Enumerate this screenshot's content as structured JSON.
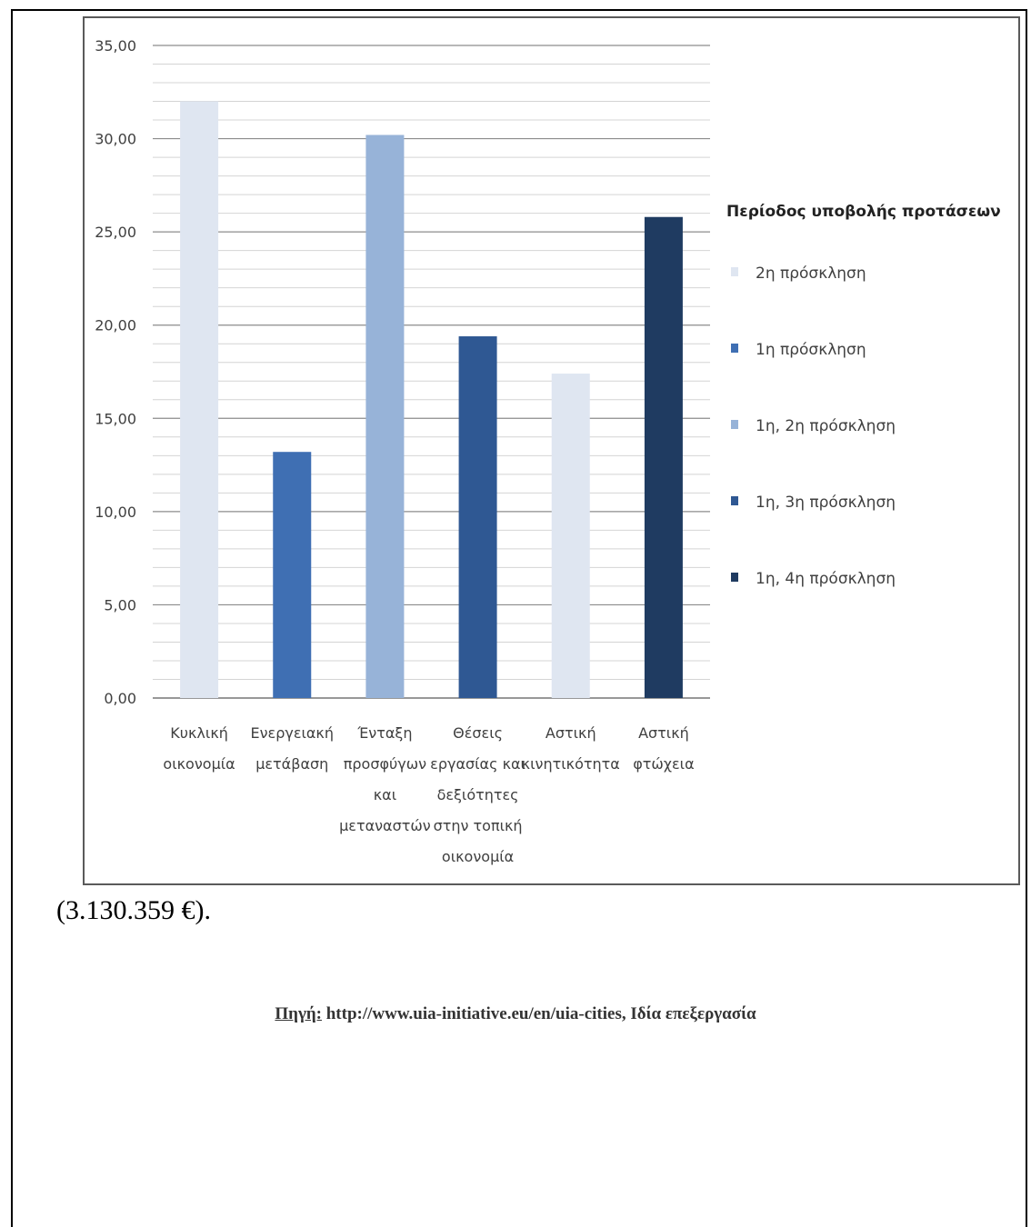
{
  "amount_text": "(3.130.359 €).",
  "source": {
    "label": "Πηγή:",
    "text": " http://www.uia-initiative.eu/en/uia-cities, Ιδία επεξεργασία"
  },
  "chart_data": {
    "type": "bar",
    "title": "",
    "xlabel": "",
    "ylabel": "",
    "ylim": [
      0,
      35
    ],
    "yticks": [
      "0,00",
      "5,00",
      "10,00",
      "15,00",
      "20,00",
      "25,00",
      "30,00",
      "35,00"
    ],
    "grid": true,
    "legend_position": "right",
    "legend_title": "Περίοδος υποβολής προτάσεων",
    "legend": [
      {
        "label": "2η πρόσκληση",
        "color": "#dfe6f1"
      },
      {
        "label": "1η πρόσκληση",
        "color": "#3f6fb3"
      },
      {
        "label": "1η, 2η πρόσκληση",
        "color": "#97b3d8"
      },
      {
        "label": "1η, 3η πρόσκληση",
        "color": "#2f5893"
      },
      {
        "label": "1η, 4η πρόσκληση",
        "color": "#1f3b61"
      }
    ],
    "categories": [
      [
        "Κυκλική",
        "οικονομία"
      ],
      [
        "Ενεργειακή",
        "μετάβαση"
      ],
      [
        "Ένταξη",
        "προσφύγων",
        "και",
        "μεταναστών"
      ],
      [
        "Θέσεις",
        "εργασίας και",
        "δεξιότητες",
        "στην τοπική",
        "οικονομία"
      ],
      [
        "Αστική",
        "κινητικότητα"
      ],
      [
        "Αστική",
        "φτώχεια"
      ]
    ],
    "values": [
      32.0,
      13.2,
      30.2,
      19.4,
      17.4,
      25.8
    ],
    "bar_legend_index": [
      0,
      1,
      2,
      3,
      0,
      4
    ]
  }
}
